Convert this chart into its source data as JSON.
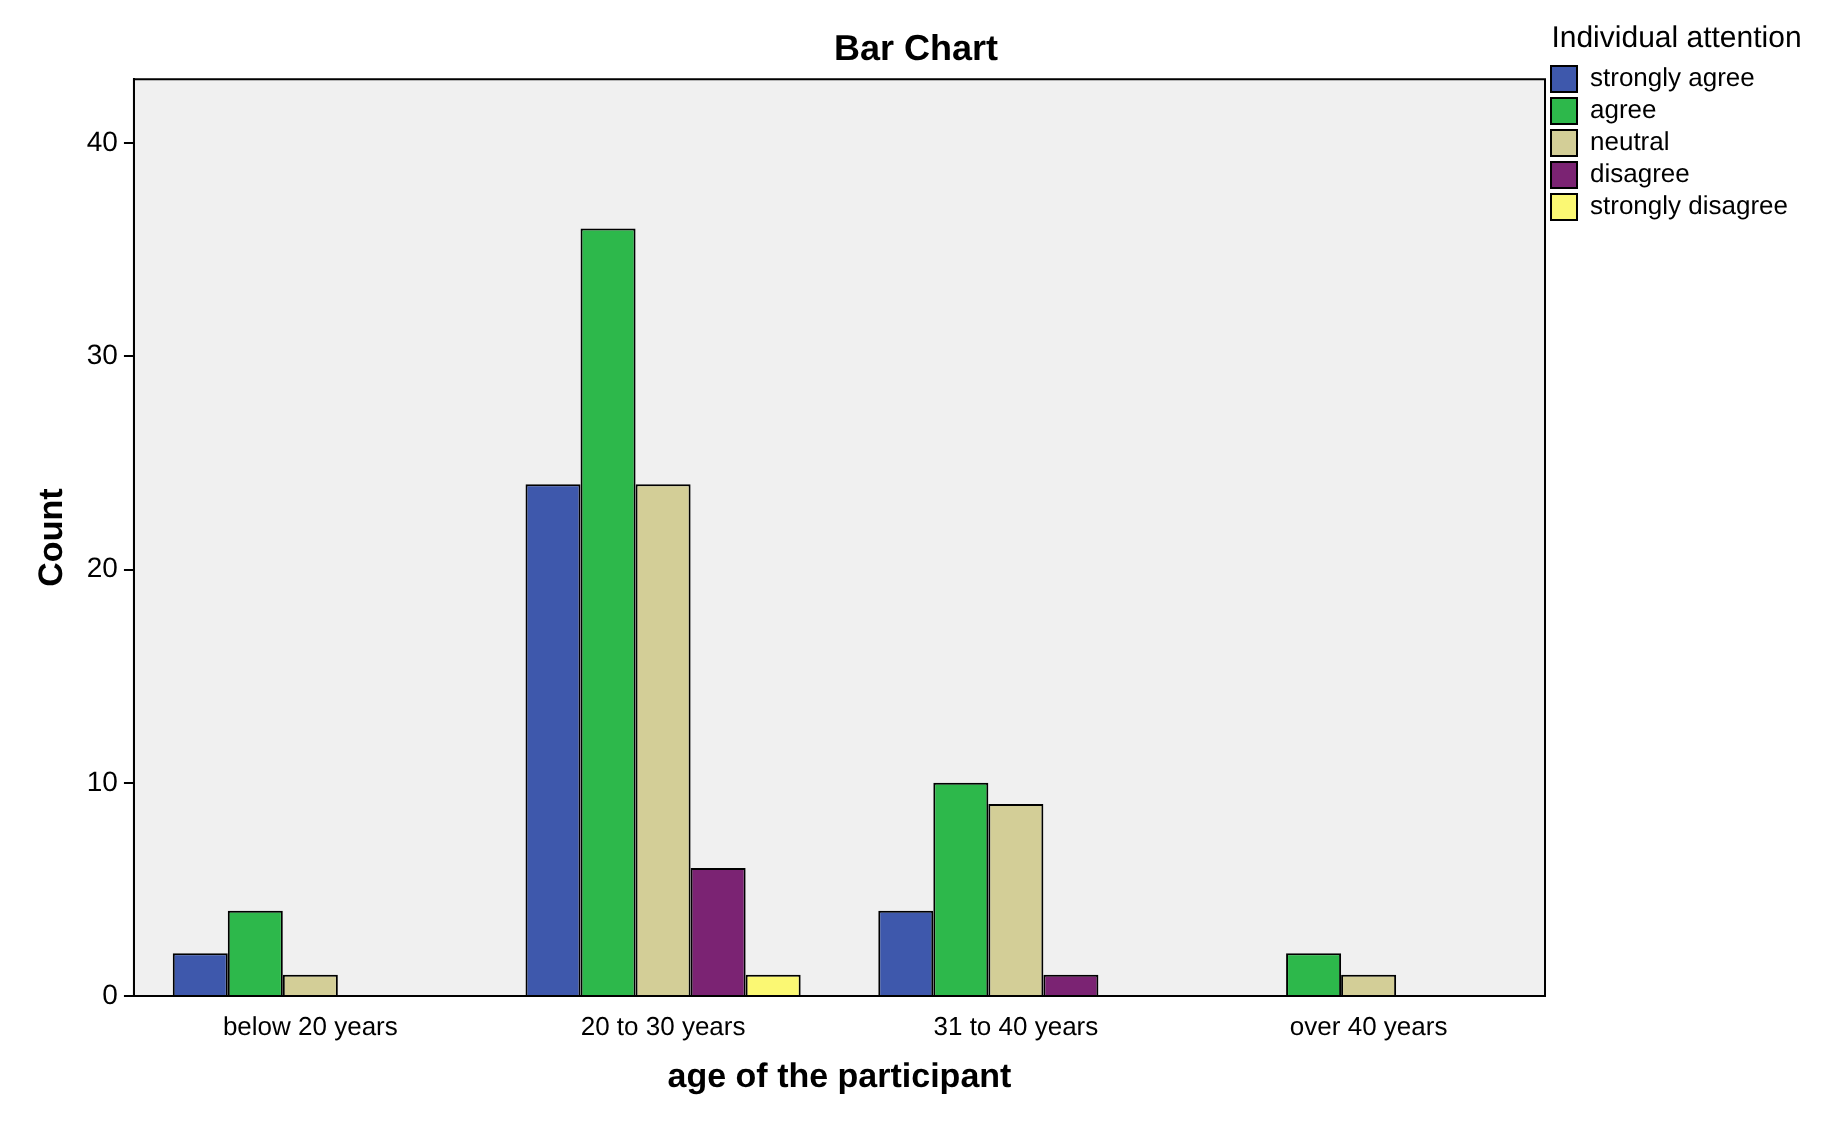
{
  "chart_data": {
    "type": "bar",
    "title": "Bar Chart",
    "xlabel": "age of the participant",
    "ylabel": "Count",
    "legend_title": "Individual attention",
    "categories": [
      "below 20 years",
      "20 to 30 years",
      "31 to 40 years",
      "over 40 years"
    ],
    "series": [
      {
        "name": "strongly agree",
        "color": "#3e58ac",
        "values": [
          2,
          24,
          4,
          null
        ]
      },
      {
        "name": "agree",
        "color": "#2db84b",
        "values": [
          4,
          36,
          10,
          2
        ]
      },
      {
        "name": "neutral",
        "color": "#d3ce97",
        "values": [
          1,
          24,
          9,
          1
        ]
      },
      {
        "name": "disagree",
        "color": "#7b2373",
        "values": [
          null,
          6,
          1,
          null
        ]
      },
      {
        "name": "strongly disagree",
        "color": "#fbf873",
        "values": [
          null,
          1,
          null,
          null
        ]
      }
    ],
    "ylim": [
      0,
      43
    ],
    "yticks": [
      0,
      10,
      20,
      30,
      40
    ],
    "grid": false,
    "legend": "right"
  }
}
